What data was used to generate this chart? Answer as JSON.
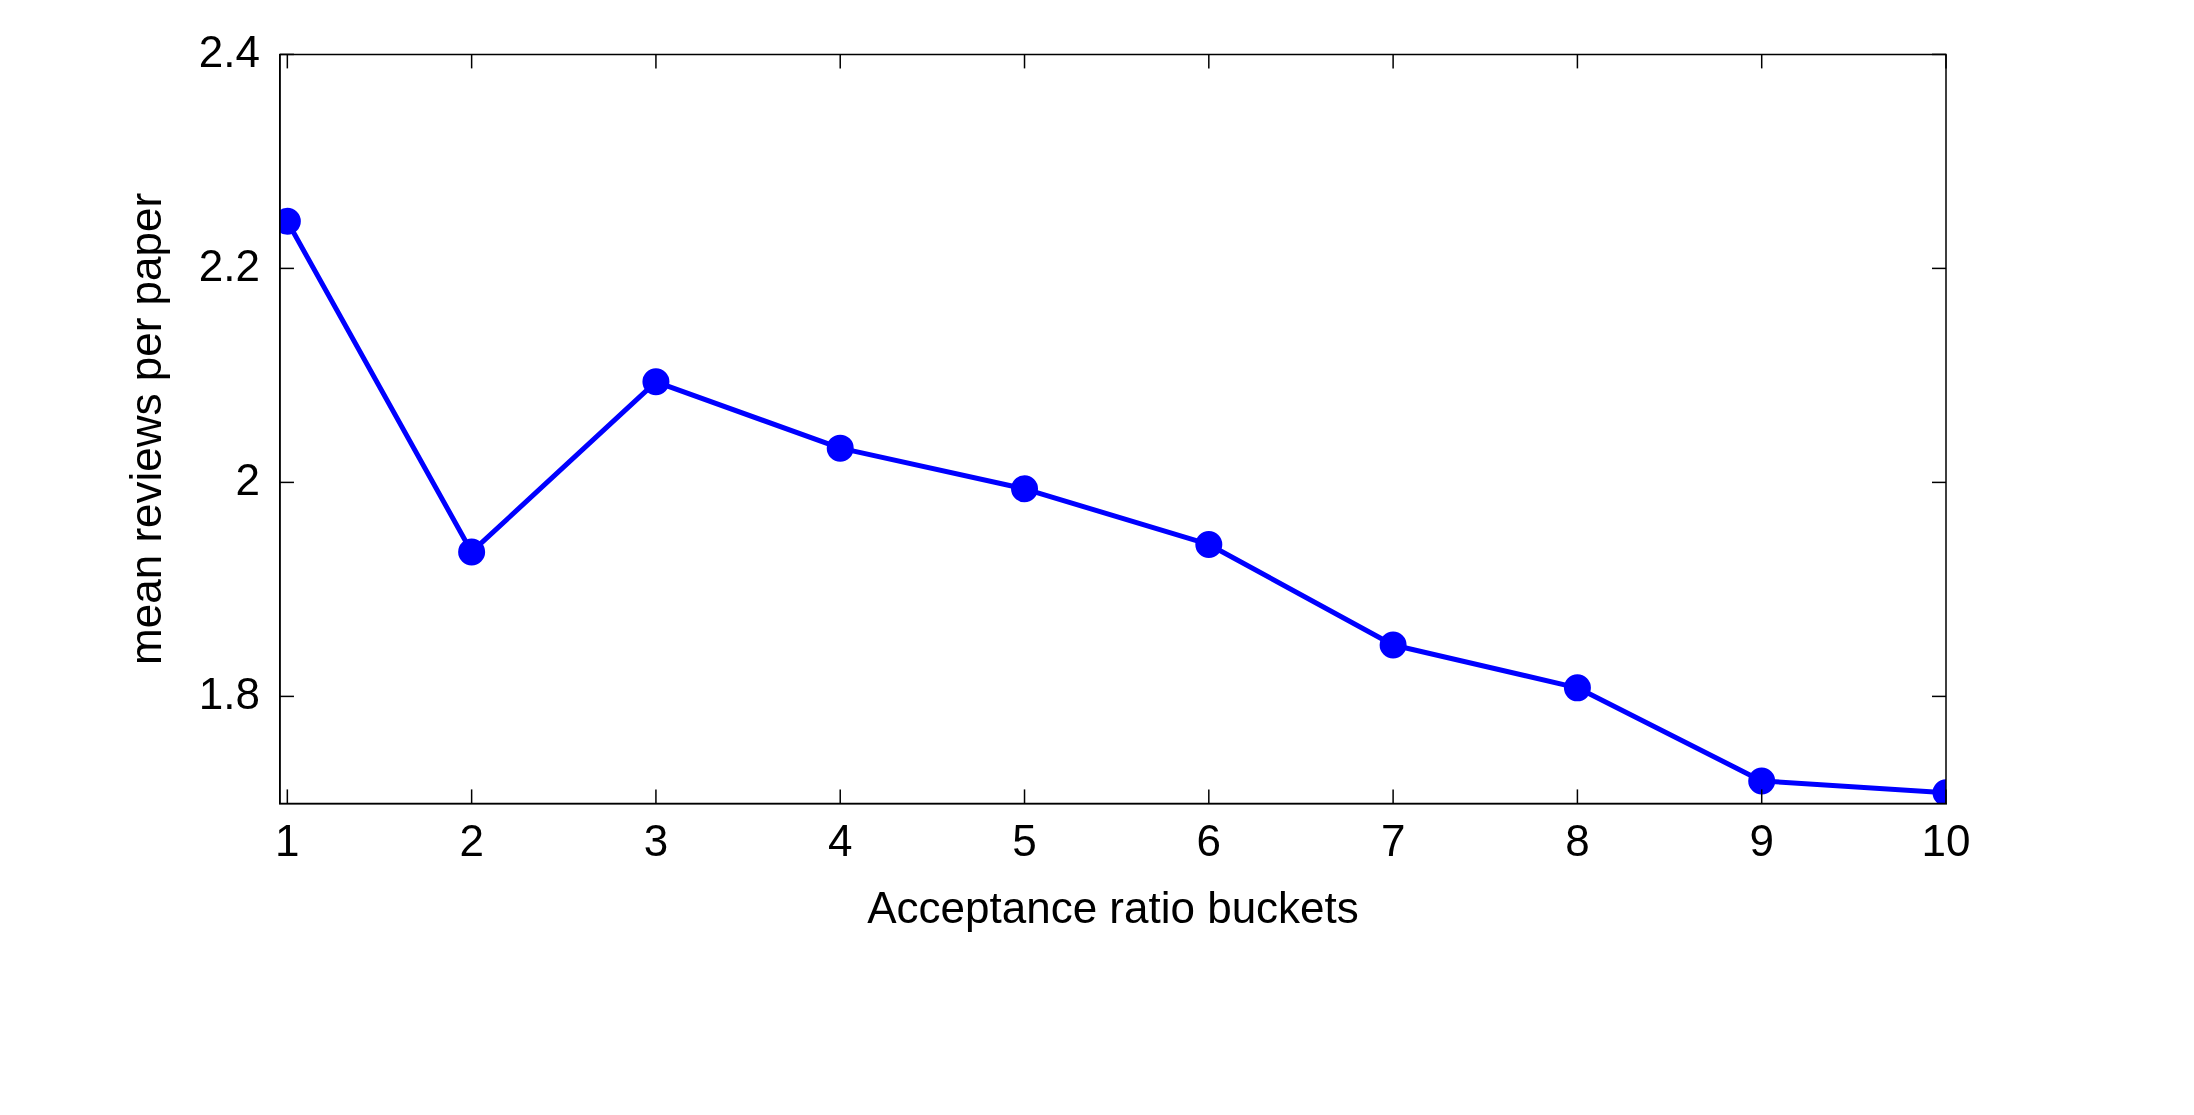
{
  "chart_data": {
    "type": "line",
    "xlabel": "Acceptance ratio buckets",
    "ylabel": "mean reviews per paper",
    "x": [
      1,
      2,
      3,
      4,
      5,
      6,
      7,
      8,
      9,
      10
    ],
    "series": [
      {
        "color": "#0000ff",
        "values": [
          2.244,
          1.935,
          2.094,
          2.032,
          1.994,
          1.942,
          1.848,
          1.808,
          1.721,
          1.71
        ]
      }
    ],
    "xlim": [
      0.96,
      10
    ],
    "xticks": [
      1,
      2,
      3,
      4,
      5,
      6,
      7,
      8,
      9,
      10
    ],
    "ylim": [
      1.7,
      2.4
    ],
    "yticks": [
      1.8,
      2,
      2.2,
      2.4
    ],
    "grid": false,
    "legend": false,
    "marker": "circle",
    "line_style": "solid"
  }
}
